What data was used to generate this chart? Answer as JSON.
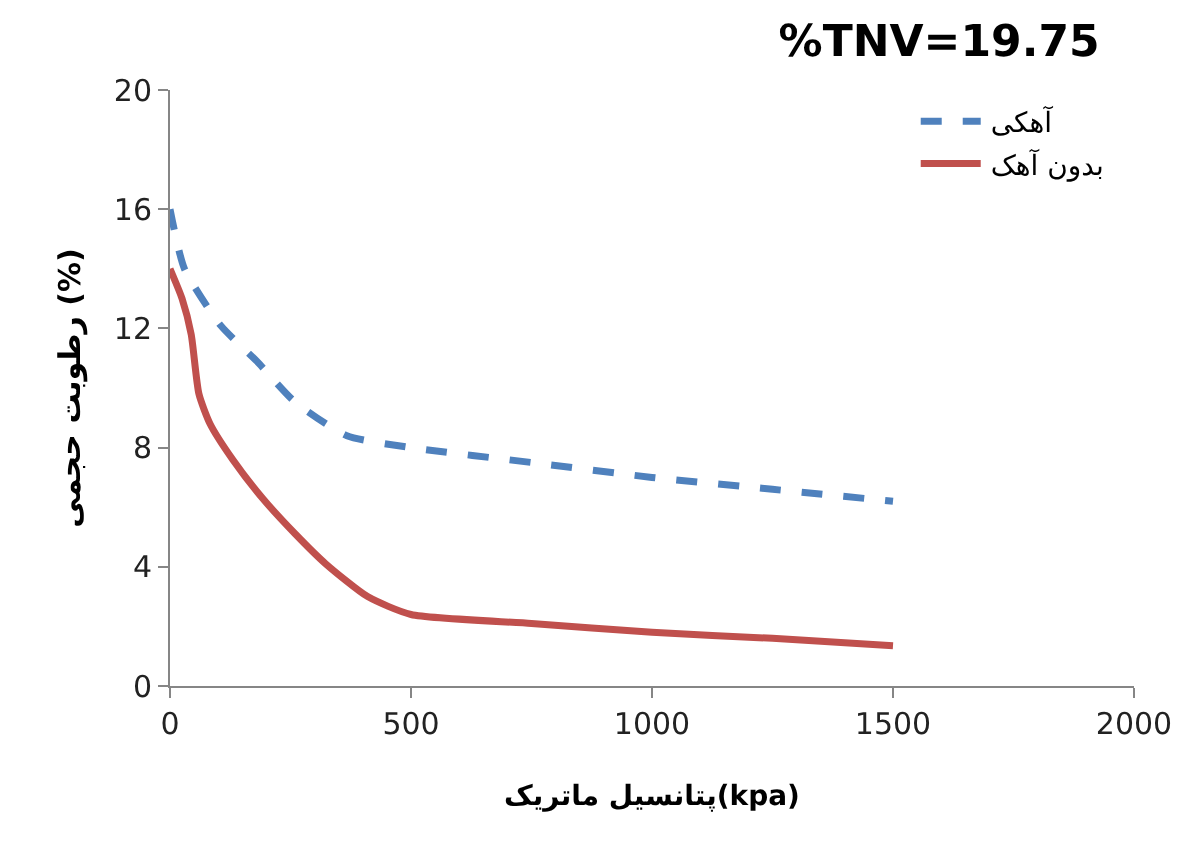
{
  "chart_data": {
    "type": "line",
    "title": "%TNV=19.75",
    "xlabel": "پتانسیل ماتریک(kpa)",
    "ylabel": "رطوبت حجمی (%)",
    "xlim": [
      0,
      2000
    ],
    "xticks": [
      0,
      500,
      1000,
      1500,
      2000
    ],
    "ylim": [
      0,
      20
    ],
    "yticks": [
      0,
      4,
      8,
      12,
      16,
      20
    ],
    "grid": false,
    "legend": "top right",
    "marker": "none",
    "series": [
      {
        "name": "آهکی",
        "color": "#4f81bd",
        "line_style": "dashed",
        "x": [
          0,
          30,
          105,
          180,
          258,
          367,
          500,
          750,
          1000,
          1250,
          1500
        ],
        "values": [
          16,
          14.0,
          12.1,
          10.9,
          9.55,
          8.4,
          8.0,
          7.5,
          7.0,
          6.6,
          6.2
        ]
      },
      {
        "name": "بدون آهک",
        "color": "#c0504d",
        "line_style": "solid",
        "x": [
          0,
          25,
          44,
          60,
          83,
          130,
          192,
          260,
          323,
          410,
          500,
          750,
          1000,
          1250,
          1500
        ],
        "values": [
          14,
          13.0,
          11.8,
          9.8,
          8.8,
          7.6,
          6.3,
          5.1,
          4.1,
          3.0,
          2.4,
          2.1,
          1.8,
          1.6,
          1.35
        ]
      }
    ]
  }
}
